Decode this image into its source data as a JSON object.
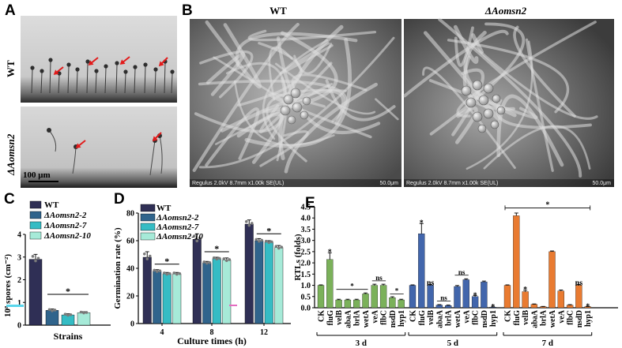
{
  "panels": {
    "A": {
      "label": "A",
      "rows": [
        "WT",
        "ΔAomsn2"
      ],
      "scale_bar": "100 μm"
    },
    "B": {
      "label": "B",
      "titles": [
        "WT",
        "ΔAomsn2"
      ],
      "sem_info": "Regulus 2.0kV 8.7mm x1.00k SE(UL)",
      "sem_scale": "50.0μm"
    }
  },
  "colors": {
    "wt": "#2f2f55",
    "m2": "#30648c",
    "m7": "#35bcc4",
    "m10": "#a6ead8",
    "green": "#7bb15a",
    "blue": "#4266ac",
    "orange": "#e97b31",
    "point": "#7a7a7a"
  },
  "chart_data": [
    {
      "panel": "C",
      "type": "bar",
      "ylabel": "10⁸ spores (cm⁻²)",
      "xlabel": "Strains",
      "ylim": [
        0,
        4
      ],
      "yticks": [
        0,
        1,
        2,
        3,
        4
      ],
      "legend": [
        "WT",
        "ΔAomsn2-2",
        "ΔAomsn2-7",
        "ΔAomsn2-10"
      ],
      "categories": [
        "WT",
        "ΔAomsn2-2",
        "ΔAomsn2-7",
        "ΔAomsn2-10"
      ],
      "values": [
        2.9,
        0.65,
        0.45,
        0.55
      ],
      "errors": [
        0.22,
        0.06,
        0.05,
        0.04
      ],
      "significance": "*"
    },
    {
      "panel": "D",
      "type": "bar",
      "ylabel": "Germination rate (%)",
      "xlabel": "Culture times (h)",
      "ylim": [
        0,
        80
      ],
      "yticks": [
        0,
        20,
        40,
        60,
        80
      ],
      "categories": [
        "4",
        "8",
        "12"
      ],
      "legend": [
        "WT",
        "ΔAomsn2-2",
        "ΔAomsn2-7",
        "ΔAomsn2-10"
      ],
      "series": [
        {
          "name": "WT",
          "values": [
            48,
            61,
            72
          ]
        },
        {
          "name": "ΔAomsn2-2",
          "values": [
            38,
            44,
            60
          ]
        },
        {
          "name": "ΔAomsn2-7",
          "values": [
            36,
            47,
            59
          ]
        },
        {
          "name": "ΔAomsn2-10",
          "values": [
            36,
            46,
            55
          ]
        }
      ],
      "errors": [
        [
          4,
          4,
          3
        ],
        [
          1,
          1,
          1.5
        ],
        [
          1,
          1,
          1
        ],
        [
          1,
          1.5,
          1.5
        ]
      ],
      "significance": [
        "*",
        "*",
        "*"
      ]
    },
    {
      "panel": "E",
      "type": "bar",
      "ylabel": "RTLs (folds)",
      "ylim": [
        0,
        4.5
      ],
      "yticks": [
        0.0,
        0.5,
        1.0,
        1.5,
        2.0,
        2.5,
        3.0,
        3.5,
        4.0,
        4.5
      ],
      "groups": [
        {
          "label": "3 d",
          "genes": [
            "CK",
            "fluG",
            "velB",
            "abaA",
            "brlA",
            "wetA",
            "veA",
            "flbC",
            "nsdD",
            "hyp1"
          ],
          "values": [
            1.0,
            2.15,
            0.35,
            0.35,
            0.35,
            0.62,
            1.0,
            1.0,
            0.45,
            0.35
          ],
          "errors": [
            0.02,
            0.3,
            0.03,
            0.03,
            0.03,
            0.04,
            0.05,
            0.05,
            0.04,
            0.03
          ]
        },
        {
          "label": "5 d",
          "genes": [
            "CK",
            "fluG",
            "velB",
            "abaA",
            "brlA",
            "wetA",
            "veA",
            "flbC",
            "nsdD",
            "hyp1"
          ],
          "values": [
            1.0,
            3.3,
            1.0,
            0.12,
            0.1,
            0.95,
            1.25,
            0.5,
            1.15,
            0.03
          ],
          "errors": [
            0.02,
            0.45,
            0.04,
            0.02,
            0.02,
            0.04,
            0.04,
            0.05,
            0.04,
            0.01
          ]
        },
        {
          "label": "7 d",
          "genes": [
            "CK",
            "fluG",
            "velB",
            "abaA",
            "brlA",
            "wetA",
            "veA",
            "flbC",
            "nsdD",
            "hyp1"
          ],
          "values": [
            1.0,
            4.1,
            0.72,
            0.15,
            0.05,
            2.5,
            0.75,
            0.12,
            1.0,
            0.05
          ],
          "errors": [
            0.02,
            0.12,
            0.06,
            0.02,
            0.01,
            0.03,
            0.04,
            0.02,
            0.04,
            0.01
          ]
        }
      ],
      "annotations": [
        "*",
        "*",
        "ns",
        "*",
        "*",
        "ns",
        "ns",
        "ns",
        "*",
        "*",
        "*",
        "*",
        "ns",
        "*"
      ]
    }
  ]
}
